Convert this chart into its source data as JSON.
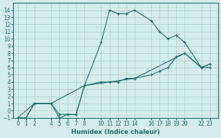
{
  "xlabel": "Humidex (Indice chaleur)",
  "ylabel": "",
  "bg_color": "#d4ecea",
  "grid_color": "#aacccc",
  "line_color": "#1a6b6b",
  "line1_x": [
    0,
    1,
    2,
    4,
    5,
    6,
    7,
    8,
    10,
    11,
    12,
    13,
    14,
    16,
    17,
    18,
    19,
    20,
    22,
    23
  ],
  "line1_y": [
    -1,
    -1,
    1,
    1,
    -1,
    -0.5,
    -0.5,
    3.5,
    9.5,
    14,
    13.5,
    13.5,
    14,
    12.5,
    11,
    10,
    10.5,
    9.5,
    6,
    6
  ],
  "line2_x": [
    0,
    1,
    2,
    4,
    5,
    6,
    7,
    8,
    10,
    11,
    12,
    13,
    14,
    16,
    17,
    18,
    19,
    20,
    22,
    23
  ],
  "line2_y": [
    -1,
    -1,
    1,
    1,
    -0.5,
    -0.5,
    -0.5,
    3.5,
    4,
    4,
    4,
    4.5,
    4.5,
    5,
    5.5,
    6,
    7.5,
    8,
    6,
    6.5
  ],
  "line3_x": [
    0,
    2,
    4,
    8,
    14,
    20,
    22,
    23
  ],
  "line3_y": [
    -1,
    1,
    1,
    3.5,
    4.5,
    8,
    6,
    6.5
  ],
  "xlim": [
    -0.5,
    24
  ],
  "ylim": [
    -1,
    15
  ],
  "xticks": [
    0,
    1,
    2,
    4,
    5,
    6,
    7,
    8,
    10,
    11,
    12,
    13,
    14,
    16,
    17,
    18,
    19,
    20,
    22,
    23
  ],
  "yticks": [
    -1,
    0,
    1,
    2,
    3,
    4,
    5,
    6,
    7,
    8,
    9,
    10,
    11,
    12,
    13,
    14
  ],
  "title_fontsize": 7,
  "tick_fontsize": 5.5,
  "xlabel_fontsize": 6.5
}
